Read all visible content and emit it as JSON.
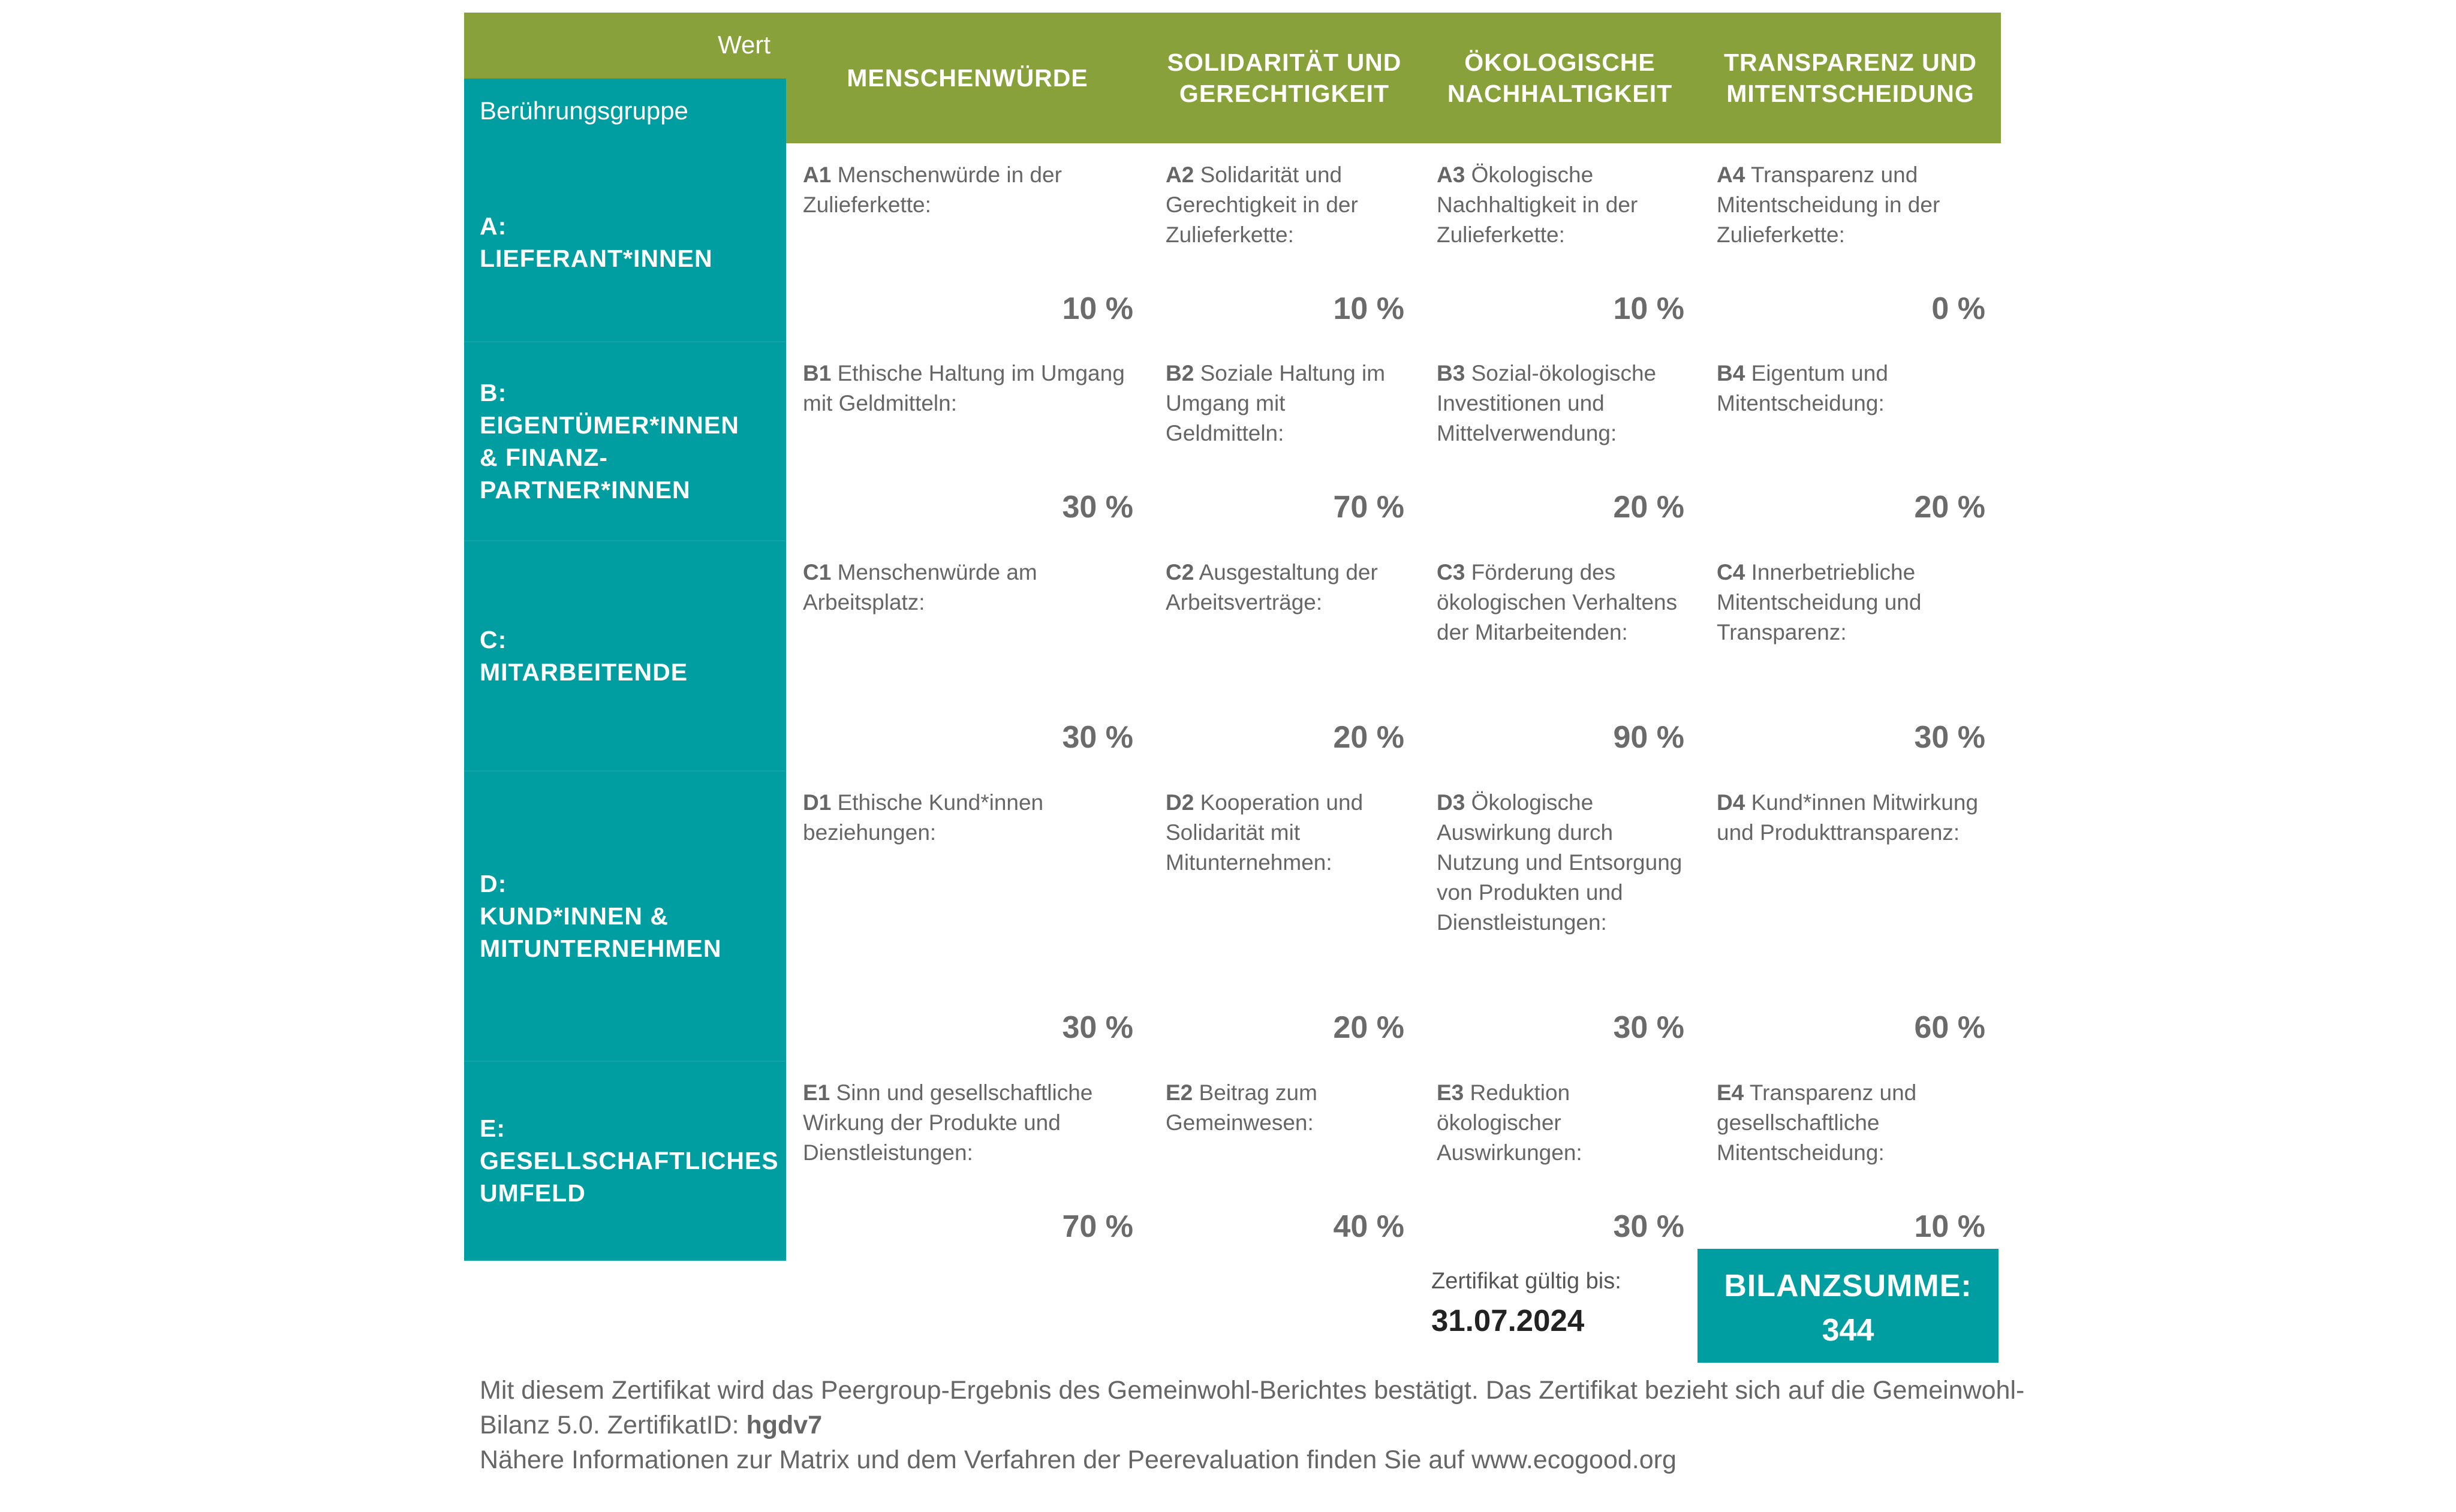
{
  "header": {
    "wert_label": "Wert",
    "gruppe_label": "Berührungsgruppe",
    "values": [
      "MENSCHENWÜRDE",
      "SOLIDARITÄT UND\nGERECHTIGKEIT",
      "ÖKOLOGISCHE\nNACHHALTIGKEIT",
      "TRANSPARENZ UND\nMITENTSCHEIDUNG"
    ]
  },
  "rows": [
    {
      "group": "A:\nLIEFERANT*INNEN",
      "fields": [
        {
          "code": "A1",
          "text": "Menschenwürde in der Zulieferkette:",
          "pct": "10 %"
        },
        {
          "code": "A2",
          "text": "Solidarität und Gerechtigkeit in der Zulieferkette:",
          "pct": "10 %"
        },
        {
          "code": "A3",
          "text": "Ökologische Nachhaltigkeit in der Zulieferkette:",
          "pct": "10 %"
        },
        {
          "code": "A4",
          "text": "Transparenz und Mitentscheidung in der Zulieferkette:",
          "pct": "0 %"
        }
      ]
    },
    {
      "group": "B:\nEIGENTÜMER*INNEN\n& FINANZ-\nPARTNER*INNEN",
      "fields": [
        {
          "code": "B1",
          "text": "Ethische Haltung im Umgang mit Geldmitteln:",
          "pct": "30 %"
        },
        {
          "code": "B2",
          "text": "Soziale Haltung im Umgang mit Geldmitteln:",
          "pct": "70 %"
        },
        {
          "code": "B3",
          "text": "Sozial-ökologische Investitionen und Mittelverwendung:",
          "pct": "20 %"
        },
        {
          "code": "B4",
          "text": "Eigentum und Mitentscheidung:",
          "pct": "20 %"
        }
      ]
    },
    {
      "group": "C:\nMITARBEITENDE",
      "fields": [
        {
          "code": "C1",
          "text": "Menschenwürde am Arbeitsplatz:",
          "pct": "30 %"
        },
        {
          "code": "C2",
          "text": "Ausgestaltung der Arbeitsverträge:",
          "pct": "20 %"
        },
        {
          "code": "C3",
          "text": "Förderung des ökologischen Verhaltens der Mitarbeitenden:",
          "pct": "90 %"
        },
        {
          "code": "C4",
          "text": "Innerbetriebliche Mitentscheidung und Transparenz:",
          "pct": "30 %"
        }
      ]
    },
    {
      "group": "D:\nKUND*INNEN &\nMITUNTERNEHMEN",
      "fields": [
        {
          "code": "D1",
          "text": "Ethische Kund*innen beziehungen:",
          "pct": "30 %"
        },
        {
          "code": "D2",
          "text": "Kooperation und Solidarität mit Mitunternehmen:",
          "pct": "20 %"
        },
        {
          "code": "D3",
          "text": "Ökologische Auswirkung durch Nutzung und Entsorgung von Produkten und Dienstleistungen:",
          "pct": "30 %"
        },
        {
          "code": "D4",
          "text": "Kund*innen Mitwirkung und Produkttransparenz:",
          "pct": "60 %"
        }
      ]
    },
    {
      "group": "E:\nGESELLSCHAFTLICHES\nUMFELD",
      "fields": [
        {
          "code": "E1",
          "text": "Sinn und gesellschaftliche Wirkung der Produkte und Dienstleistungen:",
          "pct": "70 %"
        },
        {
          "code": "E2",
          "text": "Beitrag zum Gemeinwesen:",
          "pct": "40 %"
        },
        {
          "code": "E3",
          "text": "Reduktion ökologischer Auswirkungen:",
          "pct": "30 %"
        },
        {
          "code": "E4",
          "text": "Transparenz und gesellschaftliche Mitentscheidung:",
          "pct": "10 %"
        }
      ]
    }
  ],
  "certificate": {
    "valid_label": "Zertifikat gültig bis:",
    "valid_date": "31.07.2024"
  },
  "balance": {
    "label": "BILANZSUMME:",
    "value": "344"
  },
  "footer": {
    "line1": "Mit diesem Zertifikat wird das Peergroup-Ergebnis des Gemeinwohl-Berichtes bestätigt. Das Zertifikat bezieht sich auf die Gemeinwohl-Bilanz 5.0. ZertifikatID: ",
    "certificate_id": "hgdv7",
    "line2": "Nähere Informationen zur Matrix und dem Verfahren der Peerevaluation finden Sie auf www.ecogood.org"
  },
  "colors": {
    "green": "#89a13a",
    "teal": "#009ea1"
  }
}
